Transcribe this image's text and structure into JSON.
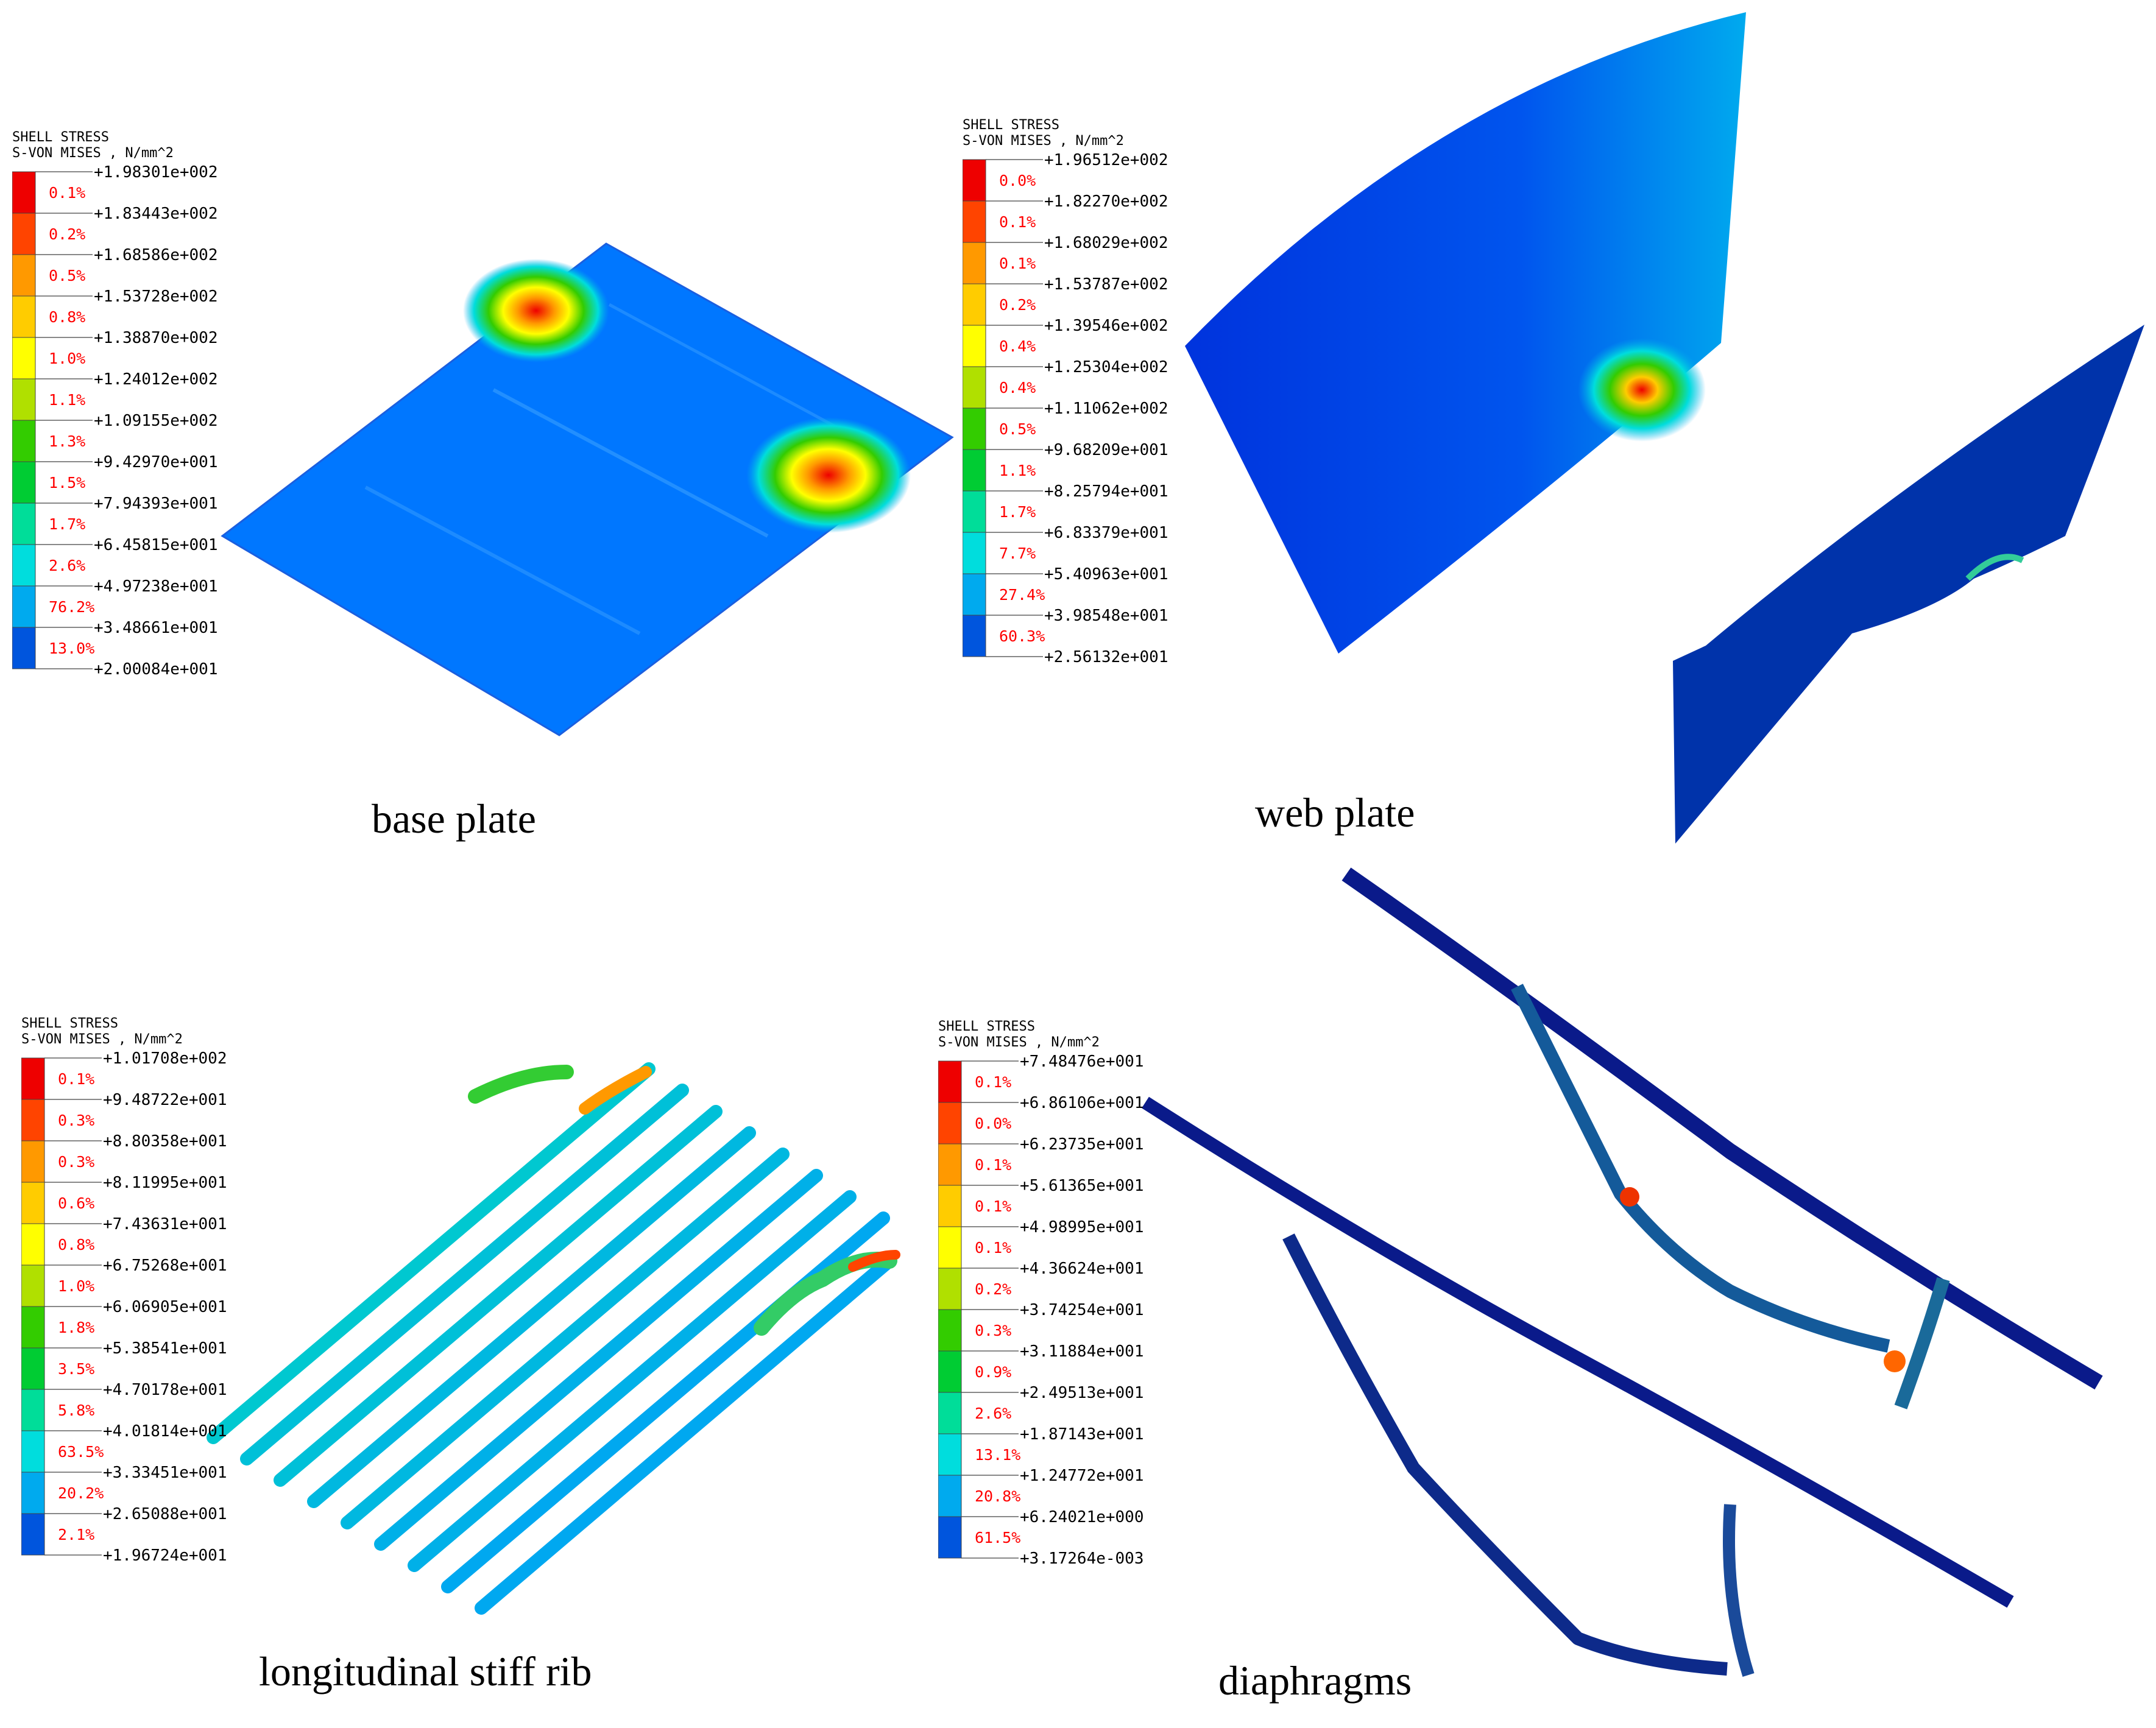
{
  "panels": [
    {
      "id": "base-plate",
      "caption": "base plate",
      "legend": {
        "title1": "SHELL STRESS",
        "title2": "S-VON MISES , N/mm^2",
        "values": [
          "+1.98301e+002",
          "+1.83443e+002",
          "+1.68586e+002",
          "+1.53728e+002",
          "+1.38870e+002",
          "+1.24012e+002",
          "+1.09155e+002",
          "+9.42970e+001",
          "+7.94393e+001",
          "+6.45815e+001",
          "+4.97238e+001",
          "+3.48661e+001",
          "+2.00084e+001"
        ],
        "percents": [
          "0.1%",
          "0.2%",
          "0.5%",
          "0.8%",
          "1.0%",
          "1.1%",
          "1.3%",
          "1.5%",
          "1.7%",
          "2.6%",
          "76.2%",
          "13.0%"
        ]
      }
    },
    {
      "id": "web-plate",
      "caption": "web plate",
      "legend": {
        "title1": "SHELL STRESS",
        "title2": "S-VON MISES , N/mm^2",
        "values": [
          "+1.96512e+002",
          "+1.82270e+002",
          "+1.68029e+002",
          "+1.53787e+002",
          "+1.39546e+002",
          "+1.25304e+002",
          "+1.11062e+002",
          "+9.68209e+001",
          "+8.25794e+001",
          "+6.83379e+001",
          "+5.40963e+001",
          "+3.98548e+001",
          "+2.56132e+001"
        ],
        "percents": [
          "0.0%",
          "0.1%",
          "0.1%",
          "0.2%",
          "0.4%",
          "0.4%",
          "0.5%",
          "1.1%",
          "1.7%",
          "7.7%",
          "27.4%",
          "60.3%"
        ]
      }
    },
    {
      "id": "longitudinal-stiff-rib",
      "caption": "longitudinal  stiff rib",
      "legend": {
        "title1": "SHELL STRESS",
        "title2": "S-VON MISES , N/mm^2",
        "values": [
          "+1.01708e+002",
          "+9.48722e+001",
          "+8.80358e+001",
          "+8.11995e+001",
          "+7.43631e+001",
          "+6.75268e+001",
          "+6.06905e+001",
          "+5.38541e+001",
          "+4.70178e+001",
          "+4.01814e+001",
          "+3.33451e+001",
          "+2.65088e+001",
          "+1.96724e+001"
        ],
        "percents": [
          "0.1%",
          "0.3%",
          "0.3%",
          "0.6%",
          "0.8%",
          "1.0%",
          "1.8%",
          "3.5%",
          "5.8%",
          "63.5%",
          "20.2%",
          "2.1%"
        ]
      }
    },
    {
      "id": "diaphragms",
      "caption": "diaphragms",
      "legend": {
        "title1": "SHELL STRESS",
        "title2": "S-VON MISES , N/mm^2",
        "values": [
          "+7.48476e+001",
          "+6.86106e+001",
          "+6.23735e+001",
          "+5.61365e+001",
          "+4.98995e+001",
          "+4.36624e+001",
          "+3.74254e+001",
          "+3.11884e+001",
          "+2.49513e+001",
          "+1.87143e+001",
          "+1.24772e+001",
          "+6.24021e+000",
          "+3.17264e-003"
        ],
        "percents": [
          "0.1%",
          "0.0%",
          "0.1%",
          "0.1%",
          "0.1%",
          "0.2%",
          "0.3%",
          "0.9%",
          "2.6%",
          "13.1%",
          "20.8%",
          "61.5%"
        ]
      }
    }
  ],
  "colorscale": [
    "#ee0000",
    "#ff4400",
    "#ff9900",
    "#ffcc00",
    "#ffff00",
    "#b0e000",
    "#33cc00",
    "#00cc33",
    "#00dd99",
    "#00dddd",
    "#00aaee",
    "#0055dd",
    "#0000dd"
  ]
}
